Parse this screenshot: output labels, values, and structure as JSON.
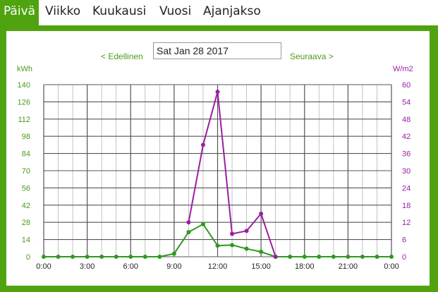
{
  "tabs": [
    {
      "label": "Päivä",
      "active": true
    },
    {
      "label": "Viikko",
      "active": false
    },
    {
      "label": "Kuukausi",
      "active": false
    },
    {
      "label": "Vuosi",
      "active": false
    },
    {
      "label": "Ajanjakso",
      "active": false
    }
  ],
  "nav": {
    "prev_label": "< Edellinen",
    "next_label": "Seuraava >",
    "date_value": "Sat Jan 28 2017"
  },
  "colors": {
    "brand_green": "#4fa30f",
    "energy_series": "#2e9a1f",
    "irradiance_series": "#9c1fa3"
  },
  "chart_data": {
    "type": "line",
    "title": "",
    "x_tick_labels": [
      "0:00",
      "3:00",
      "6:00",
      "9:00",
      "12:00",
      "15:00",
      "18:00",
      "21:00",
      "0:00"
    ],
    "xlim_hours": [
      0,
      24
    ],
    "y_left": {
      "unit_label": "kWh",
      "ticks": [
        0,
        14,
        28,
        42,
        56,
        70,
        84,
        98,
        112,
        126,
        140
      ],
      "ylim": [
        0,
        140
      ]
    },
    "y_right": {
      "unit_label": "W/m2",
      "ticks": [
        0,
        6,
        12,
        18,
        24,
        30,
        36,
        42,
        48,
        54,
        60
      ],
      "ylim": [
        0,
        60
      ]
    },
    "grid": true,
    "series": [
      {
        "axis": "left",
        "color": "#2e9a1f",
        "x": [
          0,
          1,
          2,
          3,
          4,
          5,
          6,
          7,
          8,
          9,
          10,
          11,
          12,
          13,
          14,
          15,
          16,
          17,
          18,
          19,
          20,
          21,
          22,
          23,
          24
        ],
        "y": [
          0,
          0,
          0,
          0,
          0,
          0,
          0,
          0,
          0,
          2.5,
          20,
          26.5,
          9,
          9.5,
          6.5,
          4,
          0,
          0,
          0,
          0,
          0,
          0,
          0,
          0,
          0
        ]
      },
      {
        "axis": "right",
        "color": "#9c1fa3",
        "x": [
          10,
          11,
          12,
          13,
          14,
          15,
          16
        ],
        "y": [
          12,
          39,
          57.5,
          8,
          9,
          15,
          0
        ]
      }
    ]
  }
}
